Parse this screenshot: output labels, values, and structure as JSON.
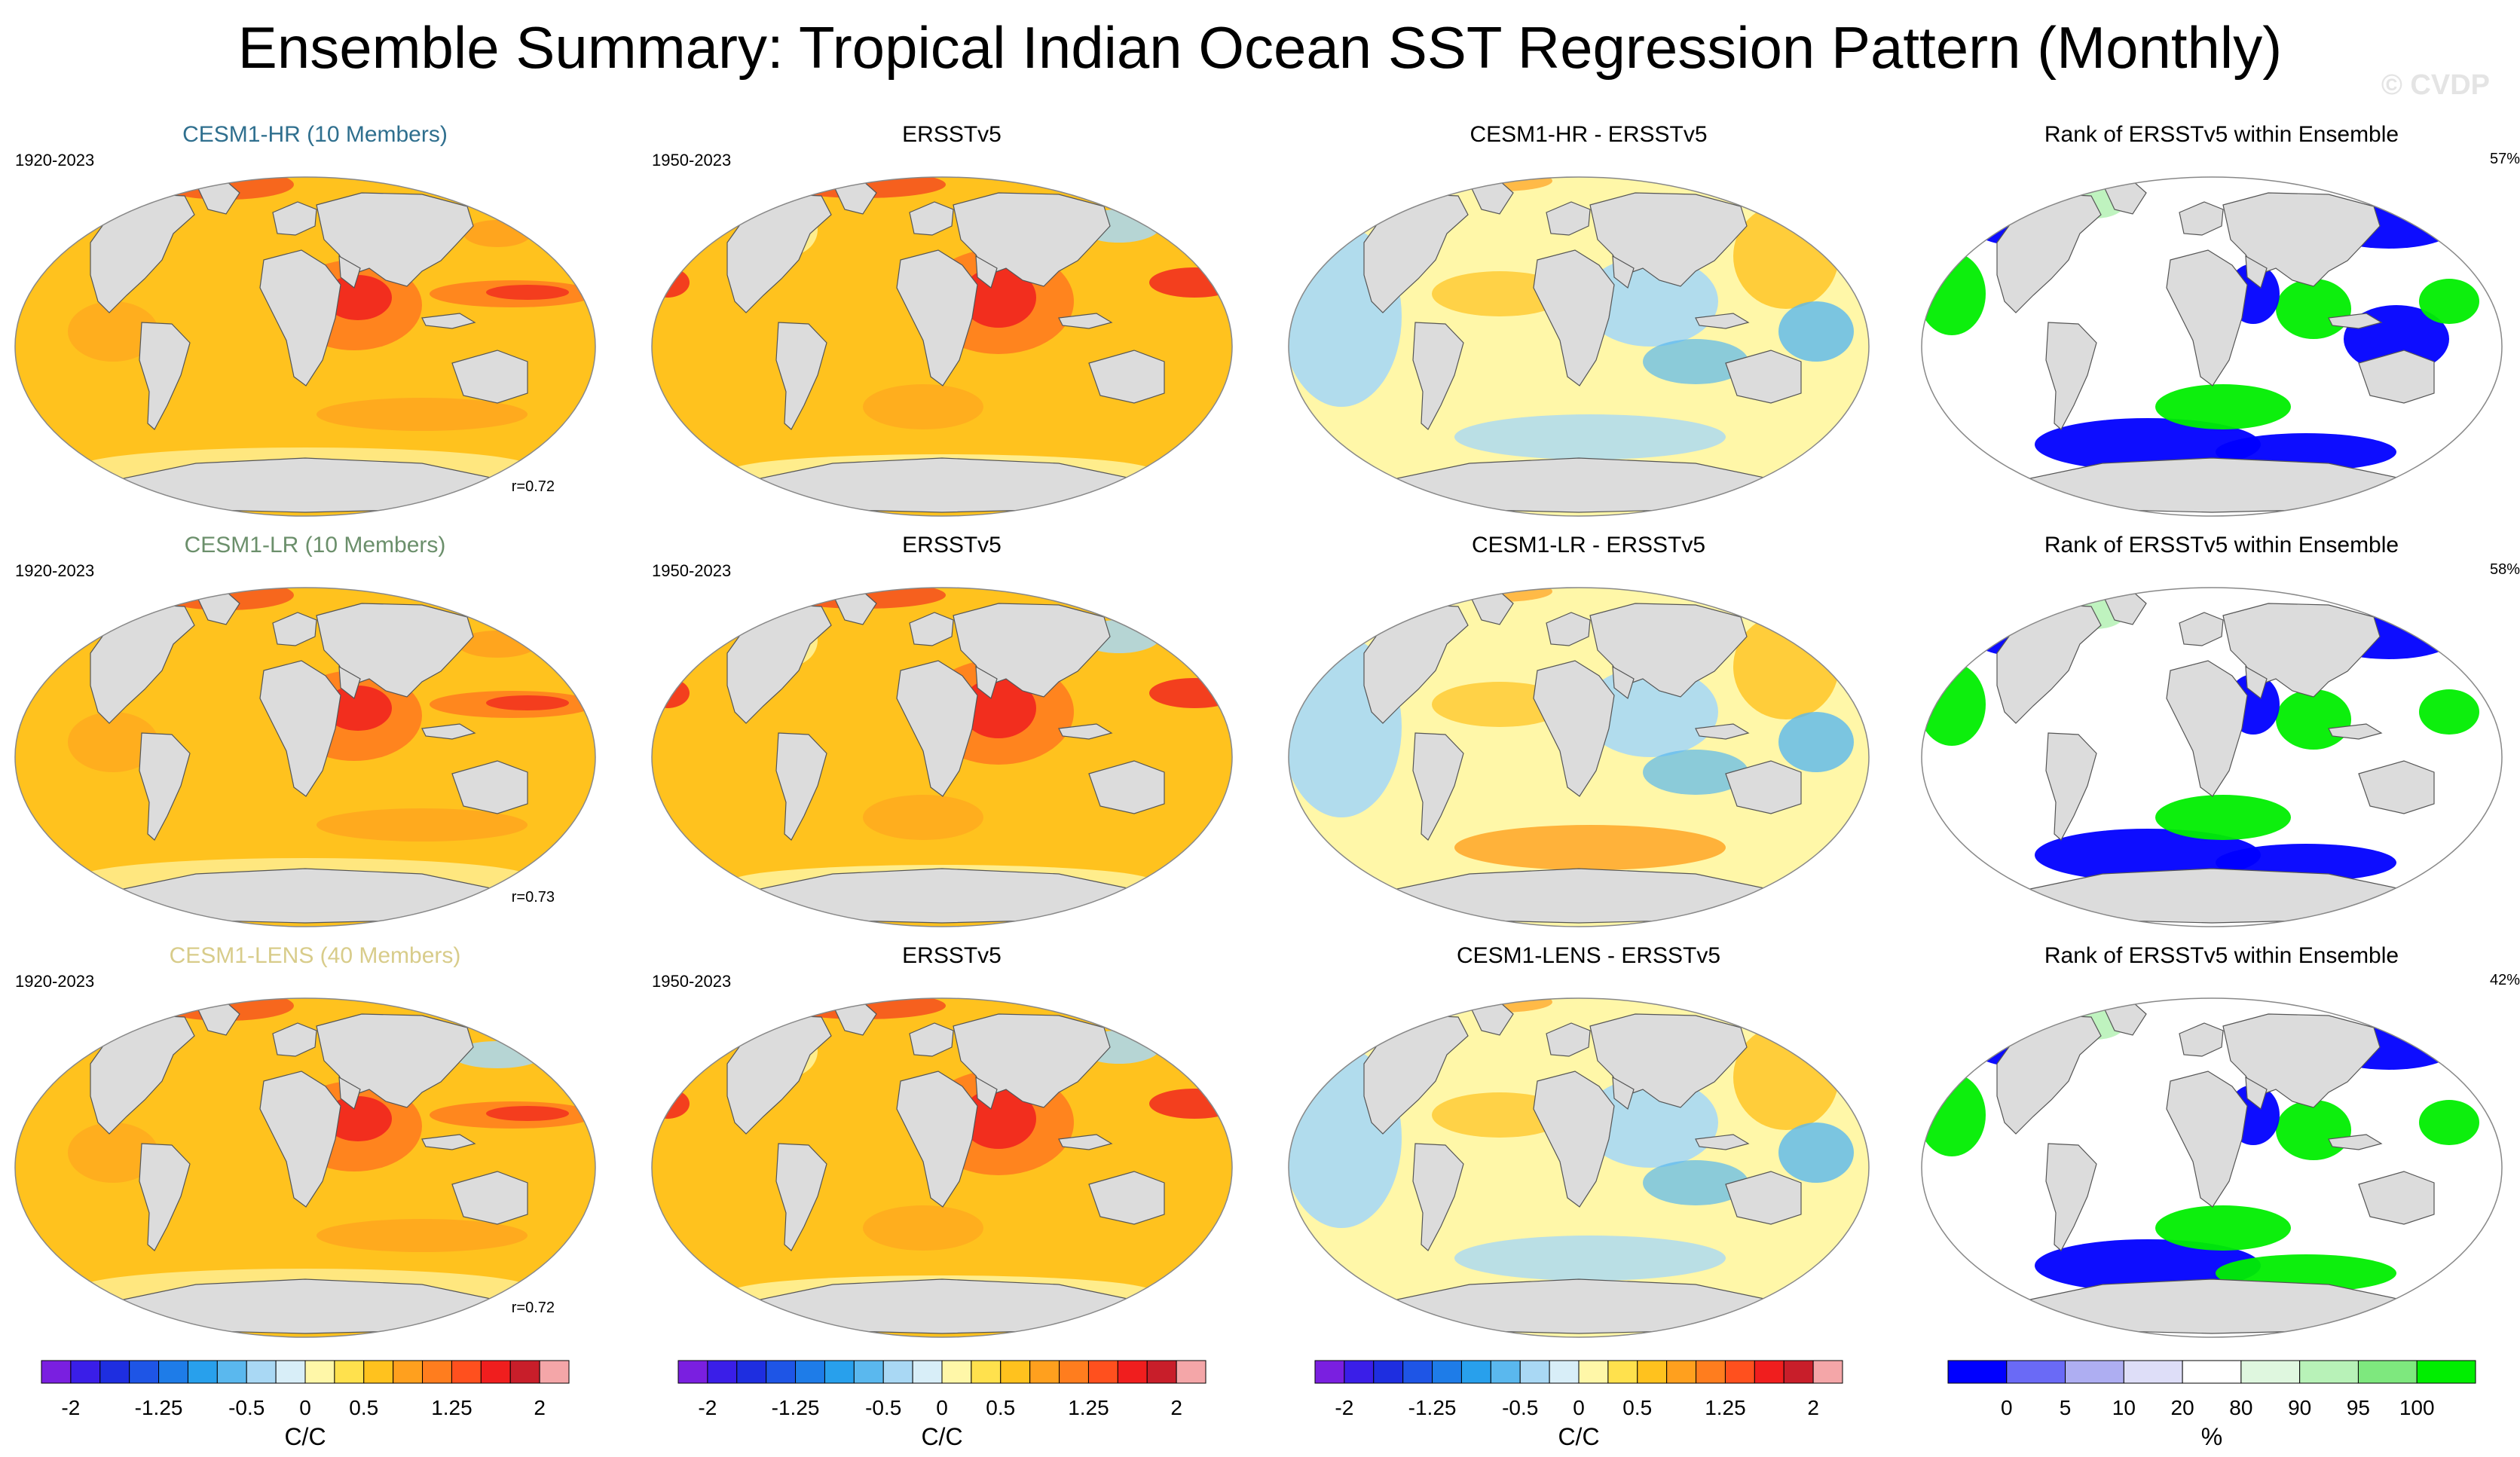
{
  "title": "Ensemble Summary: Tropical Indian Ocean SST Regression Pattern (Monthly)",
  "watermark": "© CVDP",
  "colors": {
    "model_title_hr": "#2f6f8e",
    "model_title_lr": "#6b8f6b",
    "model_title_lens": "#d8cc8a",
    "land": "#dcdcdc",
    "coast": "#555555"
  },
  "rows": [
    {
      "model_title": "CESM1-HR (10 Members)",
      "model_period": "1920-2023",
      "obs_title": "ERSSTv5",
      "obs_period": "1950-2023",
      "diff_title": "CESM1-HR - ERSSTv5",
      "rank_title": "Rank of ERSSTv5 within Ensemble",
      "rank_percent": "57%",
      "pattern_corr": "r=0.72"
    },
    {
      "model_title": "CESM1-LR (10 Members)",
      "model_period": "1920-2023",
      "obs_title": "ERSSTv5",
      "obs_period": "1950-2023",
      "diff_title": "CESM1-LR - ERSSTv5",
      "rank_title": "Rank of ERSSTv5 within Ensemble",
      "rank_percent": "58%",
      "pattern_corr": "r=0.73"
    },
    {
      "model_title": "CESM1-LENS (40 Members)",
      "model_period": "1920-2023",
      "obs_title": "ERSSTv5",
      "obs_period": "1950-2023",
      "diff_title": "CESM1-LENS - ERSSTv5",
      "rank_title": "Rank of ERSSTv5 within Ensemble",
      "rank_percent": "42%",
      "pattern_corr": "r=0.72"
    }
  ],
  "chart_data": {
    "type": "heatmap",
    "projection": "robinson-like global maps",
    "variable": "SST regression onto Tropical Indian Ocean index",
    "sst_colorbar": {
      "units": "C/C",
      "tick_labels": [
        "-2",
        "-1.25",
        "-0.5",
        "0",
        "0.5",
        "1.25",
        "2"
      ],
      "levels": [
        -2,
        -1.75,
        -1.5,
        -1.25,
        -1,
        -0.75,
        -0.5,
        -0.25,
        0,
        0.25,
        0.5,
        0.75,
        1,
        1.25,
        1.5,
        1.75,
        2
      ],
      "colors": [
        "#7a1fe0",
        "#3a1ee8",
        "#1e2ee0",
        "#1e55e6",
        "#1e7ce8",
        "#28a0ec",
        "#5ab8ee",
        "#a9d8f4",
        "#d8eef8",
        "#fff7a8",
        "#ffe14d",
        "#ffc21e",
        "#ffa01e",
        "#ff7d1e",
        "#ff501e",
        "#f01e1e",
        "#c81e2a",
        "#f4a6a8"
      ]
    },
    "rank_colorbar": {
      "units": "%",
      "tick_labels": [
        "0",
        "5",
        "10",
        "20",
        "80",
        "90",
        "95",
        "100"
      ],
      "levels": [
        0,
        5,
        10,
        20,
        80,
        90,
        95,
        100
      ],
      "colors": [
        "#0000ff",
        "#6a6af6",
        "#aeaef2",
        "#dedef8",
        "#ffffff",
        "#dff7df",
        "#b8f2b8",
        "#7ee87e",
        "#00ee00"
      ]
    },
    "panels_per_row": [
      "model ensemble mean",
      "observations",
      "difference",
      "rank"
    ]
  }
}
